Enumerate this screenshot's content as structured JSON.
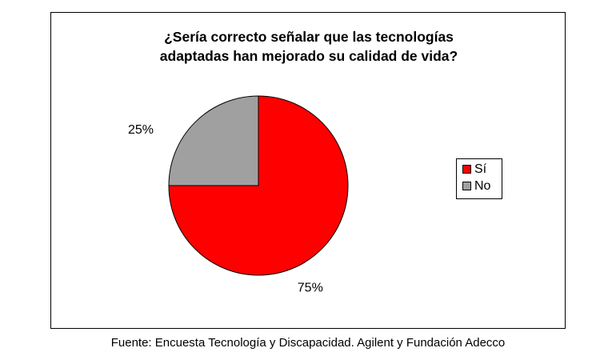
{
  "chart_data": {
    "type": "pie",
    "title_lines": [
      "¿Sería correcto señalar que las tecnologías",
      "adaptadas han mejorado su calidad de vida?"
    ],
    "categories": [
      "Sí",
      "No"
    ],
    "values": [
      75,
      25
    ],
    "value_labels": [
      "75%",
      "25%"
    ],
    "colors": [
      "#ff0000",
      "#a0a0a0"
    ],
    "legend_position": "right"
  },
  "source": "Fuente: Encuesta Tecnología y Discapacidad. Agilent y Fundación Adecco"
}
